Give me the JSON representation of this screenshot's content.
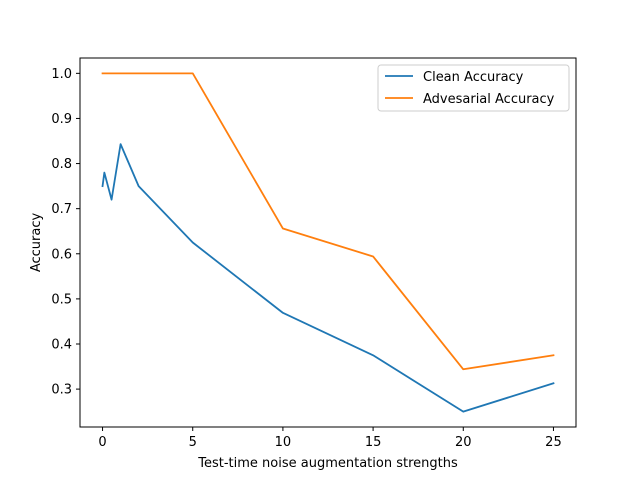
{
  "chart_data": {
    "type": "line",
    "title": "",
    "xlabel": "Test-time noise augmentation strengths",
    "ylabel": "Accuracy",
    "xlim": [
      -1.25,
      26.25
    ],
    "ylim": [
      0.216,
      1.034
    ],
    "xticks": [
      0,
      5,
      10,
      15,
      20,
      25
    ],
    "xtick_labels": [
      "0",
      "5",
      "10",
      "15",
      "20",
      "25"
    ],
    "yticks": [
      0.3,
      0.4,
      0.5,
      0.6,
      0.7,
      0.8,
      0.9,
      1.0
    ],
    "ytick_labels": [
      "0.3",
      "0.4",
      "0.5",
      "0.6",
      "0.7",
      "0.8",
      "0.9",
      "1.0"
    ],
    "grid": false,
    "legend_position": "top-right",
    "series": [
      {
        "name": "Clean Accuracy",
        "color": "#1f77b4",
        "x": [
          0,
          0.1,
          0.5,
          1,
          2,
          5,
          10,
          15,
          20,
          25
        ],
        "y": [
          0.75,
          0.78,
          0.72,
          0.843,
          0.75,
          0.625,
          0.469,
          0.375,
          0.25,
          0.313
        ]
      },
      {
        "name": "Advesarial Accuracy",
        "color": "#ff7f0e",
        "x": [
          0,
          0.1,
          0.5,
          1,
          2,
          5,
          10,
          15,
          20,
          25
        ],
        "y": [
          1.0,
          1.0,
          1.0,
          1.0,
          1.0,
          1.0,
          0.656,
          0.594,
          0.344,
          0.375
        ]
      }
    ]
  }
}
